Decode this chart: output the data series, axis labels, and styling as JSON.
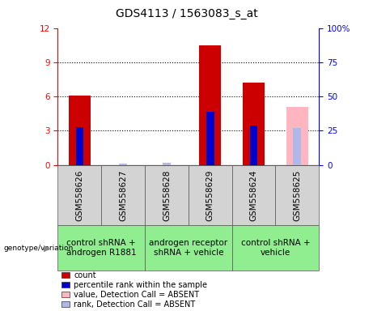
{
  "title": "GDS4113 / 1563083_s_at",
  "samples": [
    "GSM558626",
    "GSM558627",
    "GSM558628",
    "GSM558629",
    "GSM558624",
    "GSM558625"
  ],
  "count_values": [
    6.1,
    0,
    0,
    10.5,
    7.2,
    0
  ],
  "rank_values_pct": [
    27.5,
    0,
    0,
    39.0,
    29.0,
    0
  ],
  "absent_value": [
    0,
    0,
    0,
    0,
    0,
    5.1
  ],
  "absent_rank_pct": [
    0,
    1.0,
    1.5,
    0,
    0,
    27.0
  ],
  "count_color": "#cc0000",
  "rank_color": "#0000cc",
  "absent_count_color": "#ffb6c1",
  "absent_rank_color": "#b0b8e8",
  "ylim": [
    0,
    12
  ],
  "yticks": [
    0,
    3,
    6,
    9,
    12
  ],
  "y2lim": [
    0,
    100
  ],
  "y2ticks": [
    0,
    25,
    50,
    75,
    100
  ],
  "bar_width": 0.5,
  "rank_bar_width": 0.18,
  "legend_items": [
    {
      "label": "count",
      "color": "#cc0000"
    },
    {
      "label": "percentile rank within the sample",
      "color": "#0000cc"
    },
    {
      "label": "value, Detection Call = ABSENT",
      "color": "#ffb6c1"
    },
    {
      "label": "rank, Detection Call = ABSENT",
      "color": "#b0b8e8"
    }
  ],
  "title_fontsize": 10,
  "tick_fontsize": 7.5,
  "label_fontsize": 7.5,
  "group_label_fontsize": 7.5
}
